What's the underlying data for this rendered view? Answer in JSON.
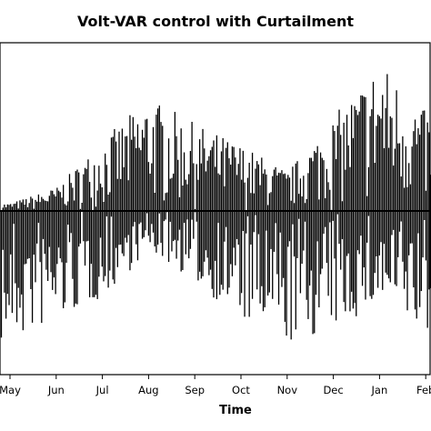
{
  "chart_data": {
    "type": "bar",
    "title": "Volt-VAR control with Curtailment",
    "xlabel": "Time",
    "ylabel": "",
    "x_tick_labels": [
      "May",
      "Jun",
      "Jul",
      "Aug",
      "Sep",
      "Oct",
      "Nov",
      "Dec",
      "Jan",
      "Feb"
    ],
    "x_range_months": [
      0,
      10
    ],
    "ylim": [
      -1.0,
      1.0
    ],
    "baseline": 0,
    "bar_color": "#000000",
    "grid": false,
    "legend": "none",
    "seasonal_envelope": {
      "description_months": [
        0,
        1,
        2,
        3,
        4,
        5,
        6,
        7,
        8,
        9
      ],
      "positive_peak": [
        0.05,
        0.15,
        0.45,
        0.72,
        0.55,
        0.42,
        0.25,
        0.6,
        0.95,
        0.62
      ],
      "negative_peak": [
        -0.85,
        -0.7,
        -0.55,
        -0.25,
        -0.45,
        -0.7,
        -0.85,
        -0.75,
        -0.6,
        -0.8
      ]
    }
  }
}
